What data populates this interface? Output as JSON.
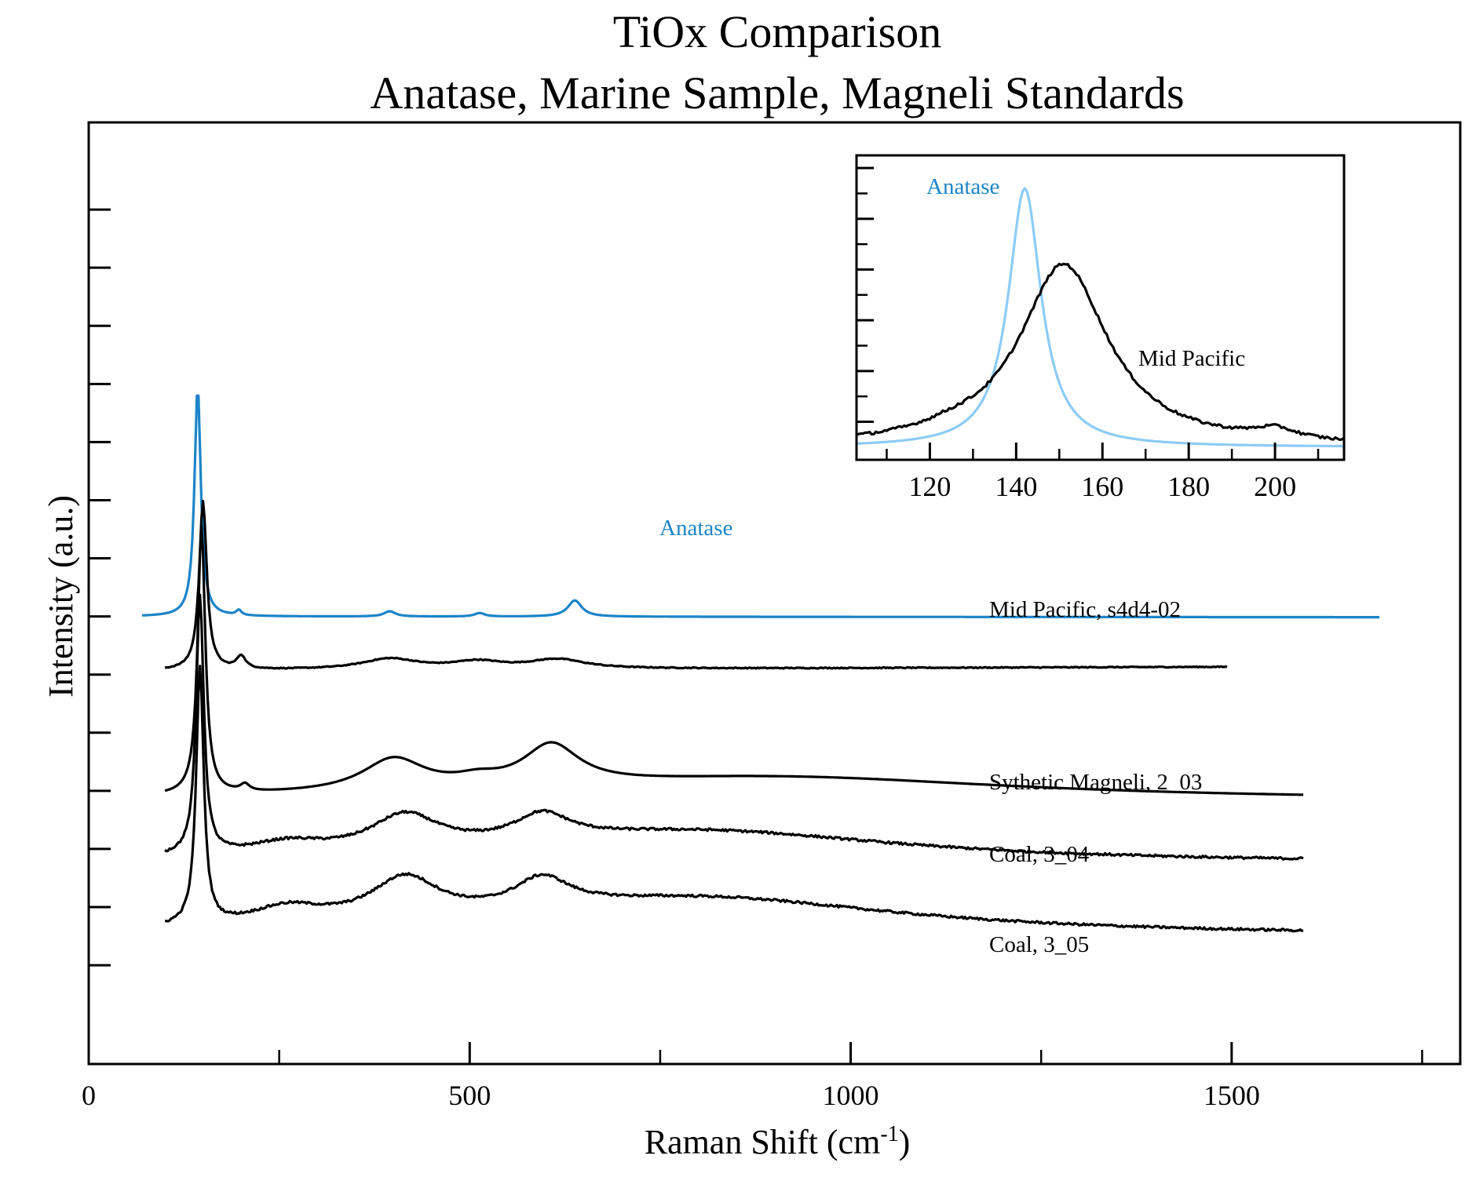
{
  "chart_data": [
    {
      "type": "line",
      "title": "TiOx Comparison",
      "subtitle": "Anatase, Marine Sample, Magneli Standards",
      "xlabel": "Raman Shift (cm",
      "xlabel_sup": "-1",
      "xlabel_suffix": ")",
      "ylabel": "Intensity (a.u.)",
      "xlim": [
        0,
        1800
      ],
      "ylim": [
        -7.7,
        8.5
      ],
      "x_ticks": [
        0,
        500,
        1000,
        1500
      ],
      "x_tick_labels": [
        "0",
        "500",
        "1000",
        "1500"
      ],
      "x_minor_ticks": [
        250,
        750,
        1250,
        1750
      ],
      "y_ticks": [
        7.0,
        6.0,
        5.0,
        4.0,
        3.0,
        2.0,
        1.0,
        0.0,
        -1.0,
        -2.0,
        -3.0,
        -4.0,
        -5.0,
        -6.0
      ],
      "y_tick_labels": [],
      "grid": false,
      "series": [
        {
          "name": "Anatase",
          "color": "#1c84c8",
          "label": "Anatase",
          "x_range": [
            70,
            1695
          ],
          "baseline": 0.0,
          "peaks": [
            [
              143,
              3.95,
              5
            ],
            [
              197,
              0.09,
              4
            ],
            [
              395,
              0.09,
              9
            ],
            [
              513,
              0.06,
              8
            ],
            [
              638,
              0.28,
              11
            ]
          ],
          "slope": -8e-06,
          "noise": 0.0
        },
        {
          "name": "Mid Pacific, s4d4-02",
          "color": "#000000",
          "label": "Mid Pacific, s4d4-02",
          "x_range": [
            100,
            1495
          ],
          "baseline": -0.93,
          "peaks": [
            [
              150,
              2.9,
              6
            ],
            [
              200,
              0.22,
              7
            ],
            [
              395,
              0.18,
              45
            ],
            [
              510,
              0.12,
              40
            ],
            [
              615,
              0.16,
              45
            ]
          ],
          "slope": 4.5e-05,
          "noise": 0.008
        },
        {
          "name": "Sythetic Magneli, 2_03",
          "color": "#000000",
          "label": "Sythetic Magneli, 2_03",
          "x_range": [
            100,
            1595
          ],
          "baseline": -3.17,
          "peaks": [
            [
              148,
              4.6,
              6
            ],
            [
              205,
              0.12,
              7
            ],
            [
              400,
              0.55,
              50
            ],
            [
              510,
              0.12,
              35
            ],
            [
              607,
              0.7,
              45
            ],
            [
              900,
              0.4,
              400
            ]
          ],
          "slope": 0.0,
          "noise": 0.0
        },
        {
          "name": "Coal, 3_04",
          "color": "#000000",
          "label": "Coal, 3_04",
          "x_range": [
            100,
            1595
          ],
          "baseline": -4.25,
          "peaks": [
            [
              146,
              4.45,
              6
            ],
            [
              260,
              0.2,
              60
            ],
            [
              415,
              0.6,
              55
            ],
            [
              595,
              0.45,
              45
            ],
            [
              800,
              0.55,
              330
            ]
          ],
          "slope": 0.0,
          "noise": 0.02
        },
        {
          "name": "Coal, 3_05",
          "color": "#000000",
          "label": "Coal, 3_05",
          "x_range": [
            100,
            1595
          ],
          "baseline": -5.5,
          "peaks": [
            [
              146,
              4.4,
              6
            ],
            [
              260,
              0.3,
              60
            ],
            [
              415,
              0.72,
              55
            ],
            [
              595,
              0.52,
              45
            ],
            [
              800,
              0.65,
              330
            ]
          ],
          "slope": 0.0,
          "noise": 0.02
        }
      ]
    },
    {
      "type": "line",
      "title": "",
      "xlabel": "",
      "ylabel": "",
      "xlim": [
        103,
        216
      ],
      "ylim": [
        -0.05,
        1.15
      ],
      "x_ticks": [
        120,
        140,
        160,
        180,
        200
      ],
      "x_tick_labels": [
        "120",
        "140",
        "160",
        "180",
        "200"
      ],
      "x_minor_ticks": [
        110,
        130,
        150,
        170,
        190,
        210
      ],
      "y_ticks": [
        0.1,
        0.3,
        0.5,
        0.7,
        0.9,
        1.1
      ],
      "y_minor_ticks": [
        0.2,
        0.4,
        0.6,
        0.8,
        1.0
      ],
      "grid": false,
      "series": [
        {
          "name": "Anatase",
          "color": "#8ccbf6",
          "label": "Anatase",
          "x_range": [
            103,
            216
          ],
          "baseline": 0.0,
          "peaks": [
            [
              142,
              1.02,
              4.6
            ]
          ],
          "slope": 0.0,
          "noise": 0.0
        },
        {
          "name": "Mid Pacific",
          "color": "#000000",
          "label": "Mid Pacific",
          "x_range": [
            103,
            216
          ],
          "baseline": 0.0,
          "peaks": [
            [
              151,
              0.72,
              12.5
            ],
            [
              200,
              0.04,
              6
            ],
            [
              125,
              0.02,
              8
            ]
          ],
          "slope": 0.0,
          "noise": 0.006
        }
      ]
    }
  ]
}
